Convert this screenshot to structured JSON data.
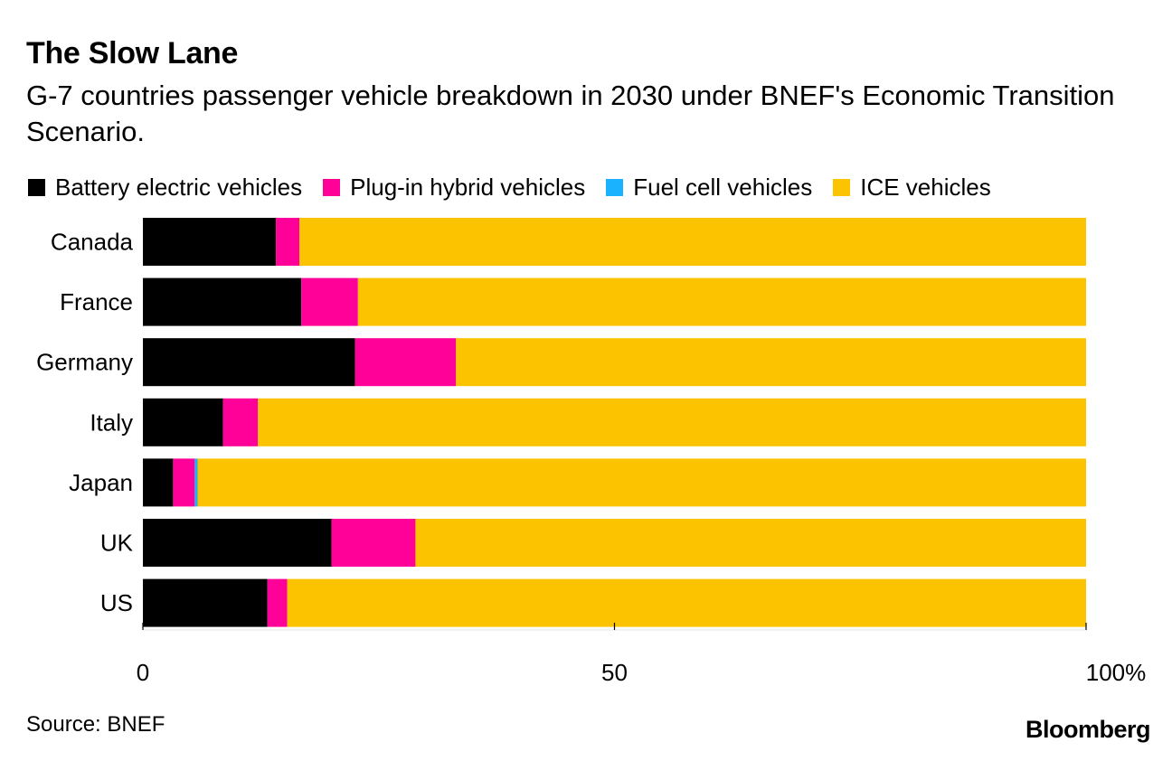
{
  "header": {
    "title": "The Slow Lane",
    "subtitle": "G-7 countries passenger vehicle breakdown in 2030 under BNEF's Economic Transition Scenario."
  },
  "footer": {
    "source": "Source: BNEF",
    "logo": "Bloomberg"
  },
  "chart_data": {
    "type": "bar",
    "orientation": "horizontal",
    "stacked": true,
    "categories": [
      "Canada",
      "France",
      "Germany",
      "Italy",
      "Japan",
      "UK",
      "US"
    ],
    "series": [
      {
        "name": "Battery electric vehicles",
        "color": "#000000",
        "values": [
          14.1,
          16.8,
          22.5,
          8.5,
          3.2,
          20.0,
          13.2
        ]
      },
      {
        "name": "Plug-in hybrid vehicles",
        "color": "#ff0099",
        "values": [
          2.5,
          6.0,
          10.7,
          3.7,
          2.3,
          8.9,
          2.1
        ]
      },
      {
        "name": "Fuel cell vehicles",
        "color": "#1ab1ff",
        "values": [
          0,
          0,
          0,
          0,
          0.3,
          0,
          0
        ]
      },
      {
        "name": "ICE vehicles",
        "color": "#fcc400",
        "values": [
          83.4,
          77.2,
          66.8,
          87.8,
          94.2,
          71.1,
          84.7
        ]
      }
    ],
    "xlim": [
      0,
      100
    ],
    "xticks": [
      0,
      50,
      100
    ],
    "xtick_labels": [
      "0",
      "50",
      "100%"
    ],
    "legend_position": "top-left",
    "grid": false
  }
}
